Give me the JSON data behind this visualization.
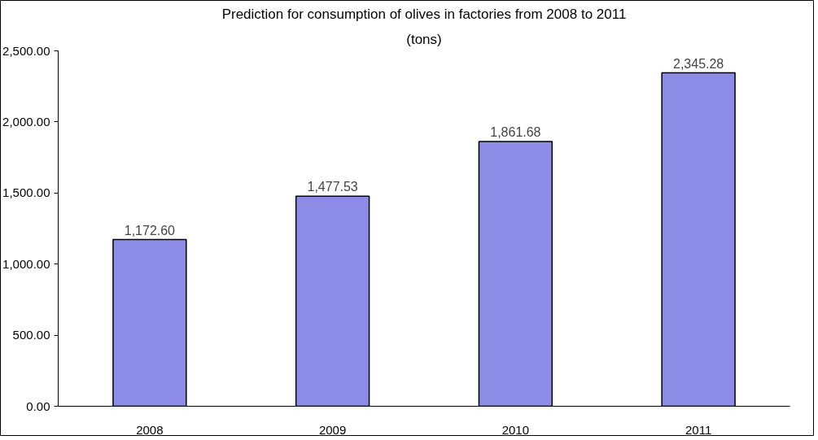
{
  "chart_data": {
    "type": "bar",
    "title": "Prediction for consumption of olives in factories from 2008 to 2011",
    "subtitle": "(tons)",
    "categories": [
      "2008",
      "2009",
      "2010",
      "2011"
    ],
    "values": [
      1172.6,
      1477.53,
      1861.68,
      2345.28
    ],
    "value_labels": [
      "1,172.60",
      "1,477.53",
      "1,861.68",
      "2,345.28"
    ],
    "color": "#8c8ce6",
    "ylim": [
      0,
      2500
    ],
    "yticks": [
      {
        "value": 0,
        "label": "0.00"
      },
      {
        "value": 500,
        "label": "500.00"
      },
      {
        "value": 1000,
        "label": "1,000.00"
      },
      {
        "value": 1500,
        "label": "1,500.00"
      },
      {
        "value": 2000,
        "label": "2,000.00"
      },
      {
        "value": 2500,
        "label": "2,500.00"
      }
    ],
    "grid": false
  }
}
